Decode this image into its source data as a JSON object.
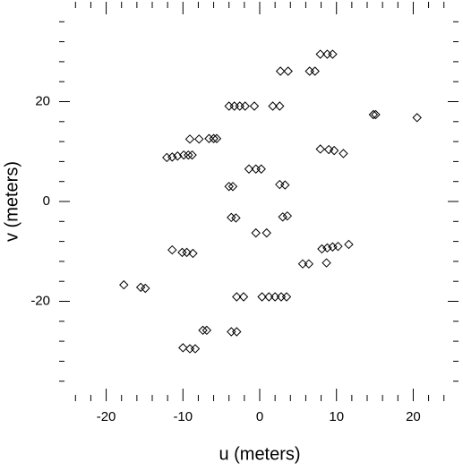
{
  "chart_data": {
    "type": "scatter",
    "xlabel": "u (meters)",
    "ylabel": "v (meters)",
    "xlim": [
      -24.5,
      24.5
    ],
    "ylim": [
      -40,
      40
    ],
    "xticks": [
      -20,
      -10,
      0,
      10,
      20
    ],
    "yticks": [
      -20,
      0,
      20
    ],
    "xminorticks": [
      -24,
      -22,
      -18,
      -16,
      -14,
      -12,
      -8,
      -6,
      -4,
      -2,
      2,
      4,
      6,
      8,
      12,
      14,
      16,
      18,
      22,
      24
    ],
    "yminorticks": [
      -36,
      -32,
      -28,
      -24,
      -16,
      -12,
      -8,
      -4,
      4,
      8,
      12,
      16,
      24,
      28,
      32,
      36
    ],
    "marker": "diamond",
    "color": "#000000",
    "x": [
      7.9,
      8.8,
      9.5,
      2.7,
      3.7,
      6.5,
      7.2,
      -4,
      -3.3,
      -2.6,
      -1.9,
      -0.7,
      1.7,
      2.6,
      14.8,
      15.1,
      20.5,
      -9.1,
      -7.9,
      -6.6,
      -6,
      -5.6,
      -12.1,
      -11.4,
      -10.7,
      -9.9,
      -9.3,
      -8.8,
      7.9,
      9,
      9.7,
      10.9,
      -1.4,
      -0.5,
      0.2,
      -4,
      -3.5,
      2.6,
      3.3,
      -3.7,
      -3.1,
      3,
      3.6,
      -0.5,
      0.9,
      -11.4,
      -10.1,
      -9.5,
      -8.7,
      8.1,
      8.8,
      9.5,
      10.2,
      11.6,
      5.6,
      6.4,
      8.7,
      -17.7,
      -15.5,
      -14.9,
      -3,
      -2.1,
      0.3,
      1.2,
      2,
      2.8,
      3.5,
      -7.4,
      -6.9,
      -3.7,
      -3,
      -10,
      -9.1,
      -8.4
    ],
    "y": [
      29.5,
      29.5,
      29.5,
      26.1,
      26.1,
      26.1,
      26.1,
      19.1,
      19.1,
      19.1,
      19.1,
      19.1,
      19.1,
      19.1,
      17.4,
      17.4,
      16.8,
      12.5,
      12.5,
      12.6,
      12.6,
      12.6,
      8.8,
      8.9,
      9.1,
      9.3,
      9.3,
      9.3,
      10.5,
      10.4,
      10.2,
      9.6,
      6.5,
      6.5,
      6.5,
      3,
      3,
      3.4,
      3.3,
      -3.2,
      -3.3,
      -3.1,
      -2.9,
      -6.3,
      -6.3,
      -9.7,
      -10.2,
      -10.2,
      -10.4,
      -9.5,
      -9.3,
      -9.1,
      -9,
      -8.6,
      -12.5,
      -12.5,
      -12.3,
      -16.7,
      -17.2,
      -17.4,
      -19.1,
      -19.1,
      -19.1,
      -19.1,
      -19.1,
      -19.1,
      -19.1,
      -25.8,
      -25.8,
      -26.1,
      -26.1,
      -29.3,
      -29.5,
      -29.5
    ]
  }
}
